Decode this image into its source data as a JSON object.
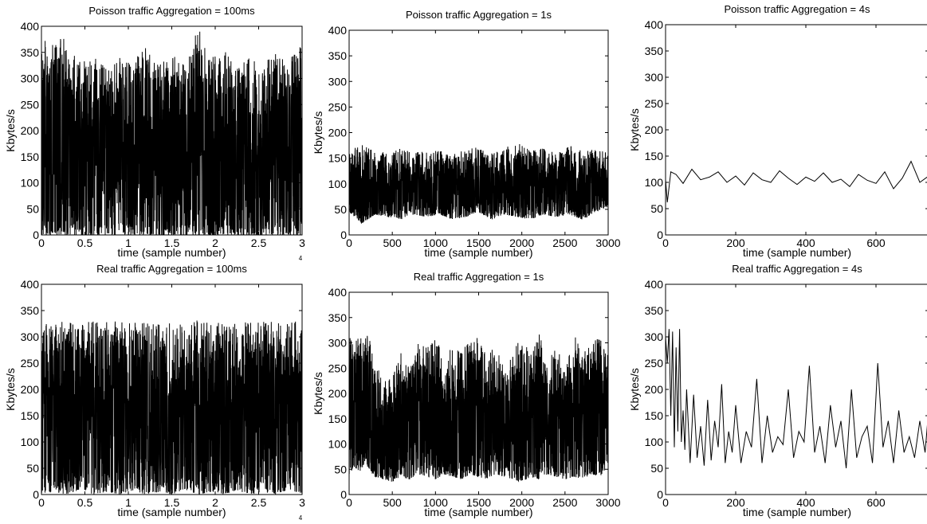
{
  "chart_data": [
    {
      "type": "line",
      "title": "Poisson traffic Aggregation = 100ms",
      "xlabel": "time (sample number)",
      "ylabel": "Kbytes/s",
      "xlim": [
        0,
        30000
      ],
      "ylim": [
        0,
        400
      ],
      "x_tick_values": [
        0,
        5000,
        10000,
        15000,
        20000,
        25000,
        30000
      ],
      "x_tick_labels": [
        "0",
        "0.5",
        "1",
        "1.5",
        "2",
        "2.5",
        "3"
      ],
      "x_exponent_label": "4",
      "y_ticks": [
        0,
        50,
        100,
        150,
        200,
        250,
        300,
        350,
        400
      ],
      "series": [
        {
          "x": [
            0,
            1500,
            3000,
            4500,
            6000,
            7500,
            9000,
            10500,
            12000,
            13500,
            15000,
            16500,
            18000,
            19500,
            21000,
            22500,
            24000,
            25500,
            27000,
            28500,
            30000
          ],
          "upper": [
            395,
            360,
            400,
            330,
            345,
            320,
            340,
            335,
            360,
            330,
            350,
            325,
            400,
            340,
            355,
            320,
            345,
            330,
            350,
            335,
            380
          ],
          "lower": [
            0,
            0,
            0,
            0,
            0,
            0,
            0,
            0,
            0,
            0,
            0,
            0,
            0,
            0,
            0,
            0,
            0,
            0,
            0,
            0,
            0
          ]
        }
      ]
    },
    {
      "type": "line",
      "title": "Poisson traffic Aggregation = 1s",
      "xlabel": "time (sample number)",
      "ylabel": "Kbytes/s",
      "xlim": [
        0,
        3000
      ],
      "ylim": [
        0,
        400
      ],
      "x_ticks": [
        0,
        500,
        1000,
        1500,
        2000,
        2500,
        3000
      ],
      "y_ticks": [
        0,
        50,
        100,
        150,
        200,
        250,
        300,
        350,
        400
      ],
      "series": [
        {
          "x": [
            0,
            150,
            300,
            450,
            600,
            750,
            900,
            1050,
            1200,
            1350,
            1500,
            1650,
            1800,
            1950,
            2100,
            2250,
            2400,
            2550,
            2700,
            2850,
            3000
          ],
          "upper": [
            160,
            185,
            165,
            160,
            170,
            160,
            165,
            170,
            160,
            165,
            175,
            160,
            170,
            185,
            165,
            170,
            160,
            175,
            165,
            170,
            160
          ],
          "lower": [
            45,
            22,
            40,
            35,
            30,
            40,
            35,
            40,
            30,
            35,
            45,
            30,
            40,
            35,
            30,
            40,
            35,
            40,
            30,
            45,
            55
          ]
        }
      ]
    },
    {
      "type": "line",
      "title": "Poisson traffic Aggregation = 4s",
      "xlabel": "time (sample number)",
      "ylabel": "Kbytes/s",
      "xlim": [
        0,
        750
      ],
      "ylim": [
        0,
        400
      ],
      "x_ticks": [
        0,
        200,
        400,
        600
      ],
      "y_ticks": [
        0,
        50,
        100,
        150,
        200,
        250,
        300,
        350,
        400
      ],
      "series": [
        {
          "x": [
            0,
            5,
            15,
            30,
            50,
            75,
            100,
            125,
            150,
            175,
            200,
            225,
            250,
            275,
            300,
            325,
            350,
            375,
            400,
            425,
            450,
            475,
            500,
            525,
            550,
            575,
            600,
            625,
            650,
            675,
            700,
            725,
            750
          ],
          "y": [
            105,
            62,
            120,
            115,
            98,
            125,
            105,
            110,
            120,
            100,
            112,
            95,
            118,
            105,
            100,
            122,
            108,
            96,
            110,
            102,
            118,
            100,
            106,
            92,
            115,
            104,
            98,
            120,
            88,
            108,
            140,
            100,
            112
          ]
        }
      ]
    },
    {
      "type": "line",
      "title": "Real traffic Aggregation = 100ms",
      "xlabel": "time (sample number)",
      "ylabel": "Kbytes/s",
      "xlim": [
        0,
        30000
      ],
      "ylim": [
        0,
        400
      ],
      "x_tick_values": [
        0,
        5000,
        10000,
        15000,
        20000,
        25000,
        30000
      ],
      "x_tick_labels": [
        "0",
        "0.5",
        "1",
        "1.5",
        "2",
        "2.5",
        "3"
      ],
      "x_exponent_label": "4",
      "y_ticks": [
        0,
        50,
        100,
        150,
        200,
        250,
        300,
        350,
        400
      ],
      "series": [
        {
          "x": [
            0,
            1500,
            3000,
            4500,
            6000,
            7500,
            9000,
            10500,
            12000,
            13500,
            15000,
            16500,
            18000,
            19500,
            21000,
            22500,
            24000,
            25500,
            27000,
            28500,
            30000
          ],
          "upper": [
            330,
            328,
            330,
            325,
            332,
            328,
            330,
            326,
            331,
            329,
            330,
            327,
            332,
            328,
            330,
            326,
            331,
            329,
            330,
            328,
            330
          ],
          "lower": [
            0,
            5,
            0,
            10,
            0,
            5,
            0,
            8,
            0,
            5,
            0,
            10,
            0,
            5,
            0,
            8,
            0,
            5,
            0,
            10,
            0
          ]
        }
      ]
    },
    {
      "type": "line",
      "title": "Real traffic Aggregation = 1s",
      "xlabel": "time (sample number)",
      "ylabel": "Kbytes/s",
      "xlim": [
        0,
        3000
      ],
      "ylim": [
        0,
        400
      ],
      "x_ticks": [
        0,
        500,
        1000,
        1500,
        2000,
        2500,
        3000
      ],
      "y_ticks": [
        0,
        50,
        100,
        150,
        200,
        250,
        300,
        350,
        400
      ],
      "series": [
        {
          "x": [
            0,
            60,
            120,
            180,
            240,
            300,
            400,
            500,
            600,
            700,
            800,
            900,
            1000,
            1100,
            1200,
            1300,
            1400,
            1500,
            1600,
            1700,
            1800,
            1900,
            2000,
            2100,
            2200,
            2300,
            2400,
            2500,
            2600,
            2700,
            2800,
            2900,
            3000
          ],
          "upper": [
            315,
            310,
            315,
            312,
            316,
            250,
            240,
            230,
            280,
            250,
            300,
            290,
            320,
            260,
            300,
            280,
            310,
            320,
            270,
            300,
            250,
            290,
            310,
            280,
            320,
            260,
            300,
            250,
            320,
            280,
            300,
            310,
            280
          ],
          "lower": [
            40,
            55,
            45,
            60,
            50,
            35,
            30,
            25,
            35,
            30,
            40,
            35,
            30,
            40,
            35,
            30,
            40,
            35,
            30,
            40,
            35,
            30,
            25,
            35,
            30,
            40,
            35,
            30,
            35,
            30,
            40,
            35,
            55
          ]
        }
      ]
    },
    {
      "type": "line",
      "title": "Real traffic Aggregation = 4s",
      "xlabel": "time (sample number)",
      "ylabel": "Kbytes/s",
      "xlim": [
        0,
        750
      ],
      "ylim": [
        0,
        400
      ],
      "x_ticks": [
        0,
        200,
        400,
        600
      ],
      "y_ticks": [
        0,
        50,
        100,
        150,
        200,
        250,
        300,
        350,
        400
      ],
      "series": [
        {
          "x": [
            0,
            5,
            10,
            15,
            20,
            25,
            30,
            35,
            40,
            45,
            50,
            55,
            60,
            70,
            80,
            90,
            100,
            110,
            120,
            130,
            140,
            150,
            160,
            170,
            180,
            190,
            200,
            215,
            230,
            245,
            260,
            275,
            290,
            305,
            320,
            335,
            350,
            365,
            380,
            395,
            410,
            425,
            440,
            455,
            470,
            485,
            500,
            515,
            530,
            545,
            560,
            575,
            590,
            605,
            620,
            635,
            650,
            665,
            680,
            695,
            710,
            725,
            740,
            750
          ],
          "y": [
            300,
            250,
            315,
            150,
            310,
            90,
            280,
            120,
            315,
            100,
            160,
            85,
            200,
            60,
            190,
            70,
            130,
            55,
            180,
            65,
            140,
            90,
            210,
            60,
            120,
            80,
            170,
            60,
            120,
            90,
            220,
            60,
            150,
            80,
            110,
            95,
            200,
            70,
            120,
            100,
            245,
            80,
            130,
            60,
            170,
            90,
            140,
            50,
            200,
            70,
            110,
            130,
            60,
            250,
            90,
            140,
            60,
            160,
            80,
            110,
            70,
            140,
            80,
            160
          ]
        }
      ]
    }
  ]
}
